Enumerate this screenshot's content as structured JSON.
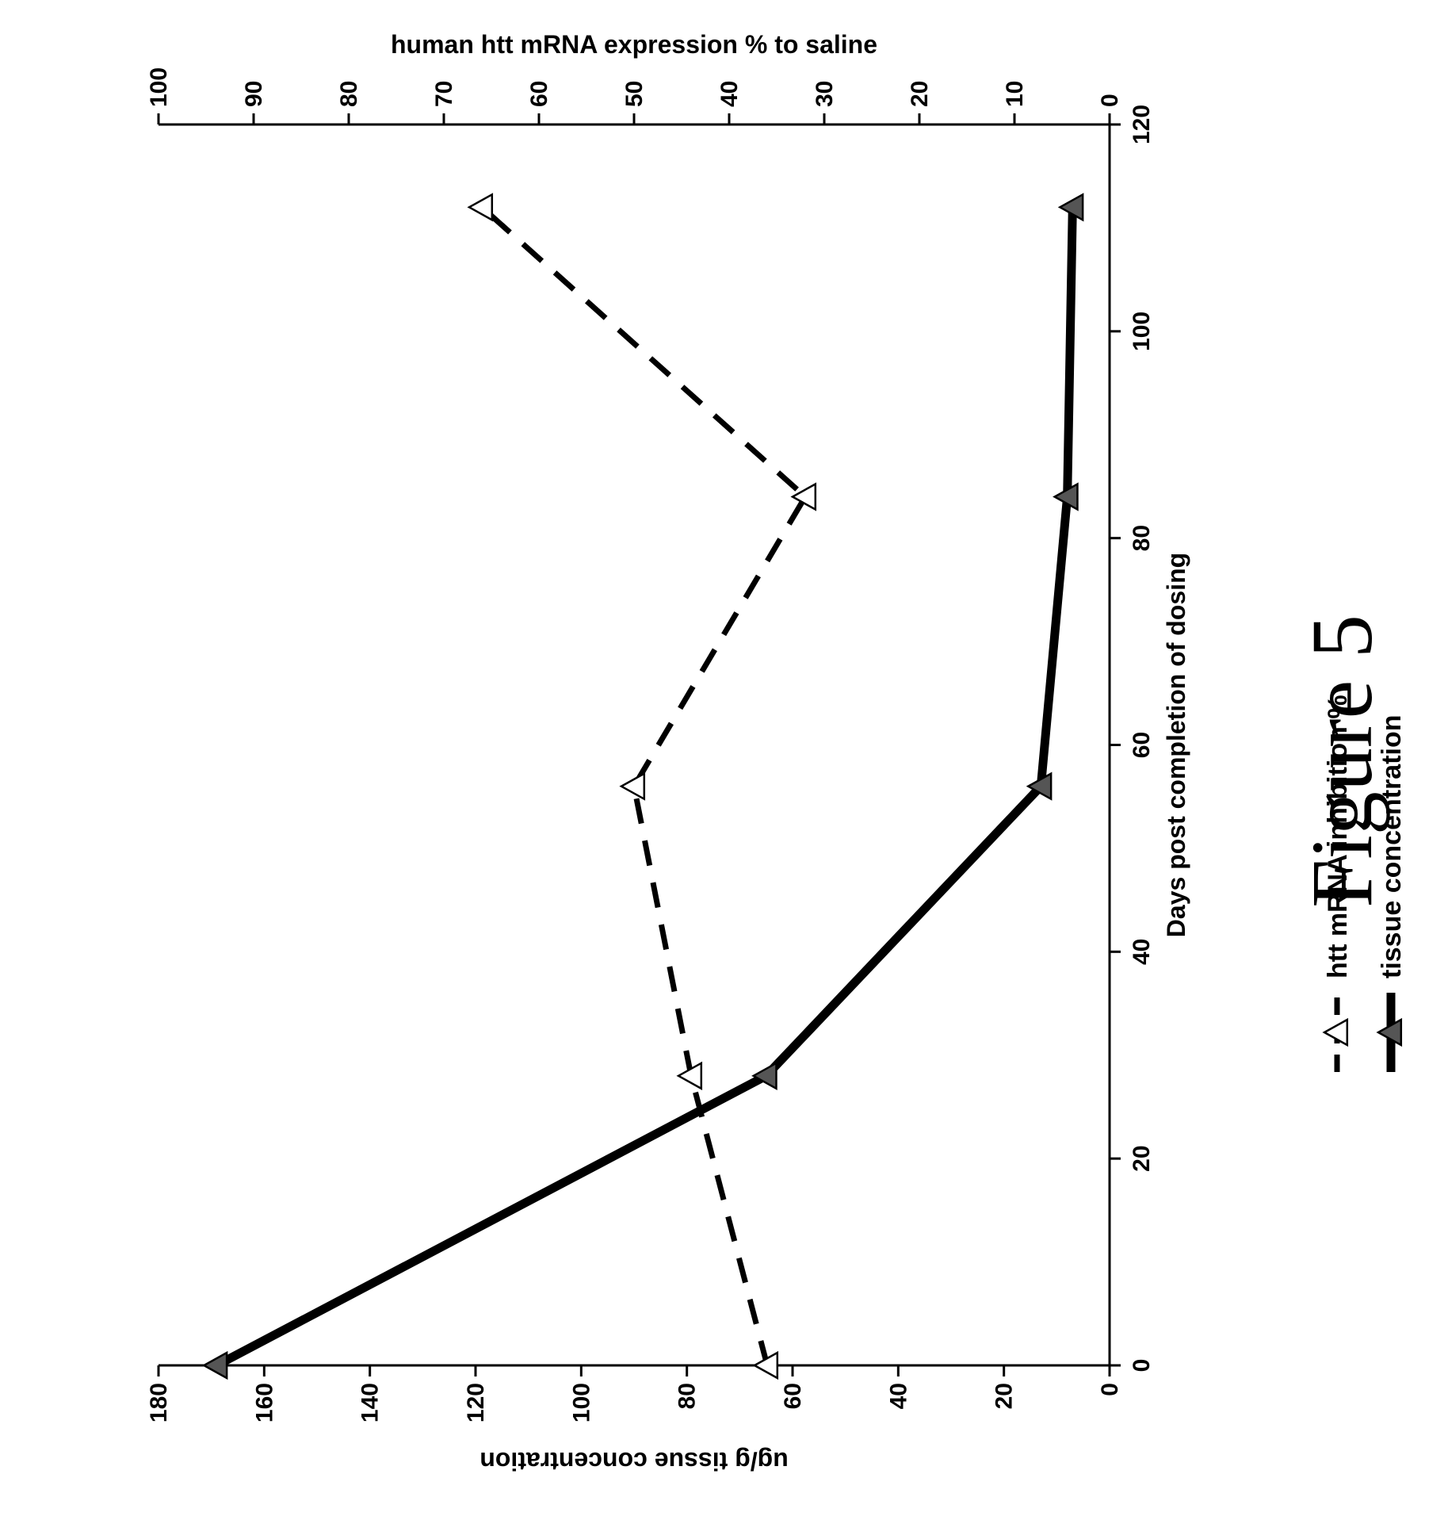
{
  "chart_data": {
    "type": "line",
    "figure_label": "Figure 5",
    "xlabel": "Days post completion of dosing",
    "ylabel_left": "ug/g tissue concentration",
    "ylabel_right": "human htt mRNA expression % to saline",
    "xlim": [
      0,
      120
    ],
    "ylim_left": [
      0,
      180
    ],
    "ylim_right": [
      0,
      100
    ],
    "x_ticks": [
      "0",
      "20",
      "40",
      "60",
      "80",
      "100",
      "120"
    ],
    "y_left_ticks": [
      "0",
      "20",
      "40",
      "60",
      "80",
      "100",
      "120",
      "140",
      "160",
      "180"
    ],
    "y_right_ticks": [
      "0",
      "10",
      "20",
      "30",
      "40",
      "50",
      "60",
      "70",
      "80",
      "90",
      "100"
    ],
    "legend_position": "top-left",
    "series": [
      {
        "name": "tissue concentration",
        "axis": "left",
        "line_style": "solid",
        "marker": "filled-triangle",
        "x": [
          0,
          28,
          56,
          84,
          112
        ],
        "values": [
          169,
          65,
          13,
          8,
          7
        ]
      },
      {
        "name": "htt mRNA inhibition %",
        "axis": "right",
        "line_style": "dashed",
        "marker": "open-triangle",
        "x": [
          0,
          28,
          56,
          84,
          112
        ],
        "values": [
          36,
          44,
          50,
          32,
          66
        ]
      }
    ]
  }
}
